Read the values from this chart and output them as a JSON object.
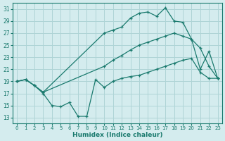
{
  "background_color": "#d4ecee",
  "grid_color": "#aed4d6",
  "line_color": "#1a7a6e",
  "x_label": "Humidex (Indice chaleur)",
  "xlim": [
    -0.5,
    23.5
  ],
  "ylim": [
    12,
    32
  ],
  "yticks": [
    13,
    15,
    17,
    19,
    21,
    23,
    25,
    27,
    29,
    31
  ],
  "xticks": [
    0,
    1,
    2,
    3,
    4,
    5,
    6,
    7,
    8,
    9,
    10,
    11,
    12,
    13,
    14,
    15,
    16,
    17,
    18,
    19,
    20,
    21,
    22,
    23
  ],
  "line_top_x": [
    0,
    1,
    2,
    3,
    10,
    11,
    12,
    13,
    14,
    15,
    16,
    17,
    18,
    19,
    20,
    21,
    22,
    23
  ],
  "line_top_y": [
    19,
    19.3,
    18.3,
    17.2,
    27.0,
    27.5,
    28.0,
    29.5,
    30.3,
    30.5,
    29.8,
    31.2,
    29.0,
    28.8,
    26.0,
    21.0,
    24.0,
    19.5
  ],
  "line_mid_x": [
    0,
    1,
    2,
    3,
    10,
    11,
    12,
    13,
    14,
    15,
    16,
    17,
    18,
    19,
    20,
    21,
    22,
    23
  ],
  "line_mid_y": [
    19,
    19.3,
    18.3,
    17.2,
    21.5,
    22.5,
    23.3,
    24.2,
    25.0,
    25.5,
    26.0,
    26.5,
    27.0,
    26.5,
    26.0,
    24.5,
    21.5,
    19.5
  ],
  "line_bot_x": [
    0,
    1,
    2,
    3,
    4,
    5,
    6,
    7,
    8,
    9,
    10,
    11,
    12,
    13,
    14,
    15,
    16,
    17,
    18,
    19,
    20,
    21,
    22,
    23
  ],
  "line_bot_y": [
    19,
    19.3,
    18.3,
    17.0,
    15.0,
    14.8,
    15.5,
    13.2,
    13.2,
    19.3,
    18.0,
    19.0,
    19.5,
    19.8,
    20.0,
    20.5,
    21.0,
    21.5,
    22.0,
    22.5,
    22.8,
    20.5,
    19.5,
    19.5
  ]
}
